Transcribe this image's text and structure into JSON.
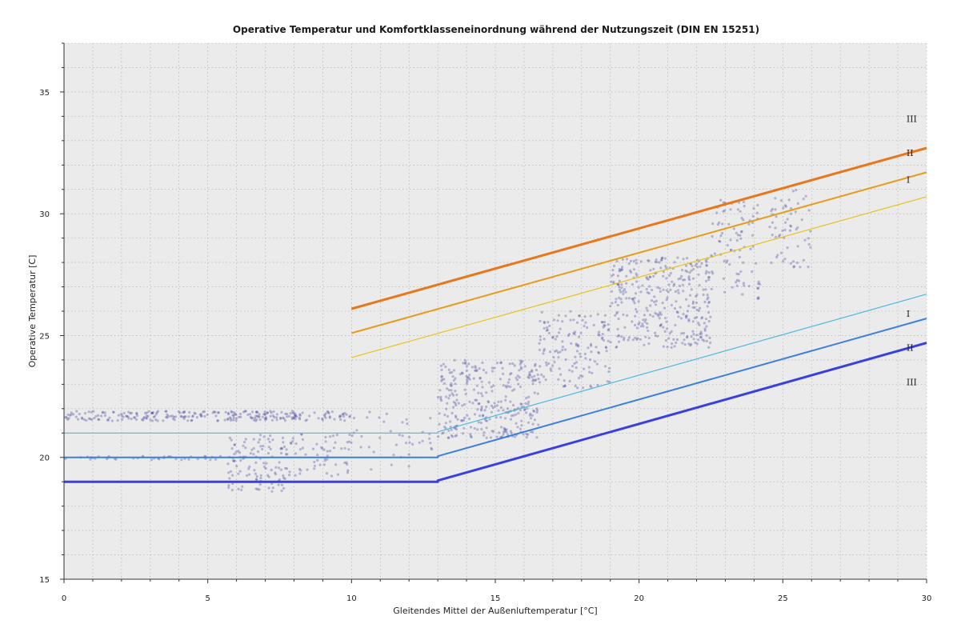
{
  "chart_data": {
    "type": "scatter",
    "title": "Operative Temperatur und Komfortklasseneinordnung während der Nutzungszeit (DIN EN 15251)",
    "xlabel": "Gleitendes Mittel der Außenluftemperatur [°C]",
    "ylabel": "Operative Temperatur [C]",
    "xlim": [
      0,
      30
    ],
    "ylim": [
      15,
      37
    ],
    "x_ticks": [
      0,
      5,
      10,
      15,
      20,
      25,
      30
    ],
    "y_ticks": [
      15,
      20,
      25,
      30,
      35
    ],
    "grid": true,
    "lines": [
      {
        "id": "upper-III",
        "label": "III",
        "color": "#e8761a",
        "width": 3,
        "points": [
          [
            10,
            26.1
          ],
          [
            30,
            32.7
          ]
        ]
      },
      {
        "id": "upper-II",
        "label": "II",
        "color": "#e89a1a",
        "width": 2,
        "points": [
          [
            10,
            25.1
          ],
          [
            30,
            31.7
          ]
        ]
      },
      {
        "id": "upper-I",
        "label": "I",
        "color": "#e8c21a",
        "width": 1.2,
        "points": [
          [
            10,
            24.1
          ],
          [
            30,
            30.7
          ]
        ]
      },
      {
        "id": "lower-I",
        "label": "I",
        "color": "#4fb8e0",
        "width": 1.2,
        "points": [
          [
            0,
            21.0
          ],
          [
            13,
            21.0
          ],
          [
            13,
            21.05
          ],
          [
            30,
            26.7
          ]
        ]
      },
      {
        "id": "lower-II",
        "label": "II",
        "color": "#3d7fe0",
        "width": 2,
        "points": [
          [
            0,
            20.0
          ],
          [
            13,
            20.0
          ],
          [
            13,
            20.05
          ],
          [
            30,
            25.7
          ]
        ]
      },
      {
        "id": "lower-III",
        "label": "III",
        "color": "#3a3fe0",
        "width": 3,
        "points": [
          [
            0,
            19.0
          ],
          [
            13,
            19.0
          ],
          [
            13,
            19.05
          ],
          [
            30,
            24.7
          ]
        ]
      }
    ],
    "class_labels": [
      {
        "text": "III",
        "x": 29.3,
        "y": 33.9
      },
      {
        "text": "II",
        "x": 29.3,
        "y": 32.5
      },
      {
        "text": "I",
        "x": 29.3,
        "y": 31.4
      },
      {
        "text": "I",
        "x": 29.3,
        "y": 25.9
      },
      {
        "text": "II",
        "x": 29.3,
        "y": 24.5
      },
      {
        "text": "III",
        "x": 29.3,
        "y": 23.1
      }
    ],
    "scatter": {
      "color": "#3a3a9a",
      "clusters": [
        {
          "x": [
            0,
            10
          ],
          "y": [
            21.5,
            21.9
          ],
          "count": 260
        },
        {
          "x": [
            0,
            5.5
          ],
          "y": [
            19.9,
            20.05
          ],
          "count": 40
        },
        {
          "x": [
            5.7,
            7.8
          ],
          "y": [
            18.6,
            21.0
          ],
          "count": 120
        },
        {
          "x": [
            7.8,
            10
          ],
          "y": [
            19.2,
            21.0
          ],
          "count": 60
        },
        {
          "x": [
            10,
            13
          ],
          "y": [
            19.5,
            22.0
          ],
          "count": 40
        },
        {
          "x": [
            13,
            16.5
          ],
          "y": [
            20.8,
            24.0
          ],
          "count": 320
        },
        {
          "x": [
            16.5,
            19
          ],
          "y": [
            22.8,
            26.0
          ],
          "count": 150
        },
        {
          "x": [
            19,
            22.5
          ],
          "y": [
            24.5,
            28.2
          ],
          "count": 340
        },
        {
          "x": [
            22.5,
            24.2
          ],
          "y": [
            26.5,
            30.6
          ],
          "count": 90
        },
        {
          "x": [
            24.5,
            26
          ],
          "y": [
            27.8,
            31.0
          ],
          "count": 60
        }
      ]
    },
    "colors": {
      "plot_background": "#ebebeb",
      "grid": "#a8a8a8"
    }
  }
}
